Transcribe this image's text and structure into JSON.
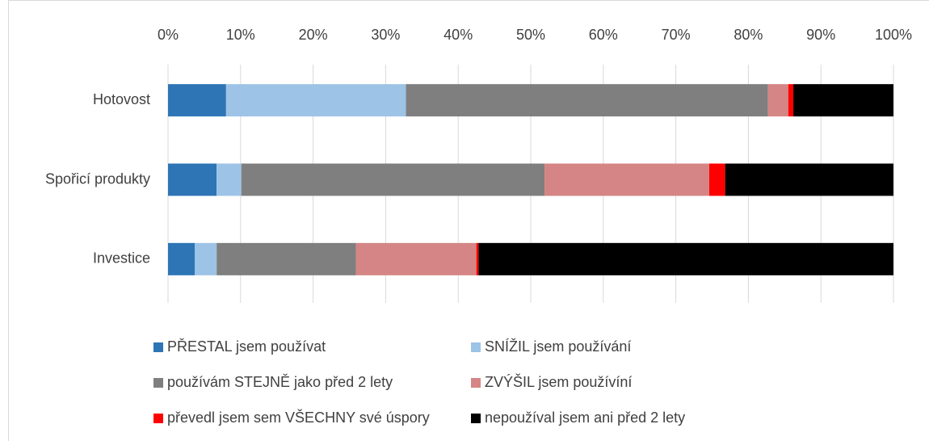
{
  "chart_data": {
    "type": "bar",
    "orientation": "horizontal",
    "stacked": true,
    "categories": [
      "Hotovost",
      "Spořicí produkty",
      "Investice"
    ],
    "series": [
      {
        "name": "PŘESTAL jsem používat",
        "color": "#2e75b6",
        "values": [
          8,
          6.7,
          3.7
        ]
      },
      {
        "name": "SNÍŽIL jsem používání",
        "color": "#9dc3e6",
        "values": [
          24.8,
          3.4,
          3.0
        ]
      },
      {
        "name": "používám STEJNĚ jako před 2 lety",
        "color": "#7f7f7f",
        "values": [
          49.9,
          41.8,
          19.2
        ]
      },
      {
        "name": "ZVÝŠIL jsem používíní",
        "color": "#d58585",
        "values": [
          2.8,
          22.7,
          16.6
        ]
      },
      {
        "name": "převedl jsem sem VŠECHNY své úspory",
        "color": "#ff0000",
        "values": [
          0.7,
          2.2,
          0.3
        ]
      },
      {
        "name": "nepoužíval jsem ani před 2 lety",
        "color": "#000000",
        "values": [
          13.8,
          23.2,
          57.2
        ]
      }
    ],
    "xlim": [
      0,
      100
    ],
    "xticks": [
      {
        "value": 0,
        "label": "0%"
      },
      {
        "value": 10,
        "label": "10%"
      },
      {
        "value": 20,
        "label": "20%"
      },
      {
        "value": 30,
        "label": "30%"
      },
      {
        "value": 40,
        "label": "40%"
      },
      {
        "value": 50,
        "label": "50%"
      },
      {
        "value": 60,
        "label": "60%"
      },
      {
        "value": 70,
        "label": "70%"
      },
      {
        "value": 80,
        "label": "80%"
      },
      {
        "value": 90,
        "label": "90%"
      },
      {
        "value": 100,
        "label": "100%"
      }
    ],
    "grid": true,
    "legend": "bottom"
  }
}
